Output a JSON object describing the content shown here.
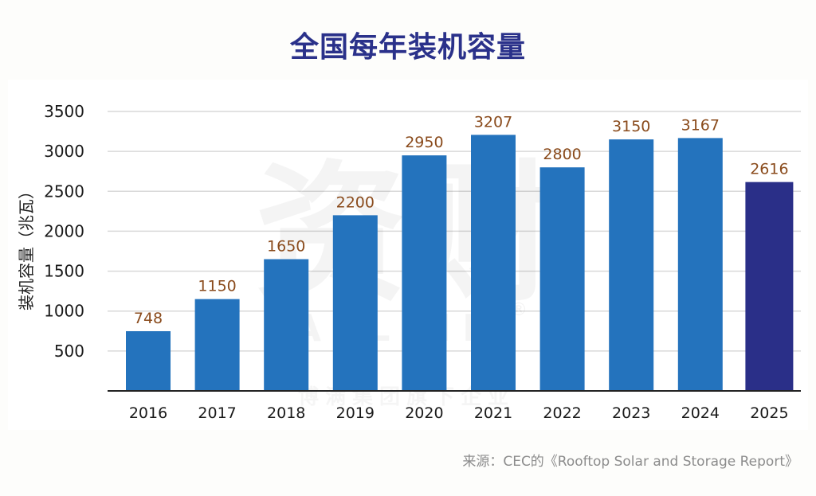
{
  "chart_data": {
    "type": "bar",
    "title": "全国每年装机容量",
    "xlabel": "",
    "ylabel": "装机容量（兆瓦）",
    "categories": [
      "2016",
      "2017",
      "2018",
      "2019",
      "2020",
      "2021",
      "2022",
      "2023",
      "2024",
      "2025"
    ],
    "values": [
      748,
      1150,
      1650,
      2200,
      2950,
      3207,
      2800,
      3150,
      3167,
      2616
    ],
    "data_labels": [
      "748",
      "1150",
      "1650",
      "2200",
      "2950",
      "3207",
      "2800",
      "3150",
      "3167",
      "2616"
    ],
    "highlight_index": 9,
    "ylim": [
      0,
      3500
    ],
    "yticks": [
      500,
      1000,
      1500,
      2000,
      2500,
      3000,
      3500
    ],
    "ytick_labels": [
      "500",
      "1000",
      "1500",
      "2000",
      "2500",
      "3000",
      "3500"
    ],
    "grid": true,
    "legend": "none",
    "colors": {
      "bar": "#2473bd",
      "highlight_bar": "#2a2f88",
      "data_label": "#8a4b1c",
      "grid": "#d9d9d9",
      "axis": "#222222",
      "title": "#2a318a"
    }
  },
  "watermark": {
    "logo_text": "资财",
    "brand_text": "ALLFIN",
    "registered_mark": "®",
    "tagline": "博满集团旗下企业"
  },
  "source": "来源：CEC的《Rooftop Solar and Storage Report》"
}
